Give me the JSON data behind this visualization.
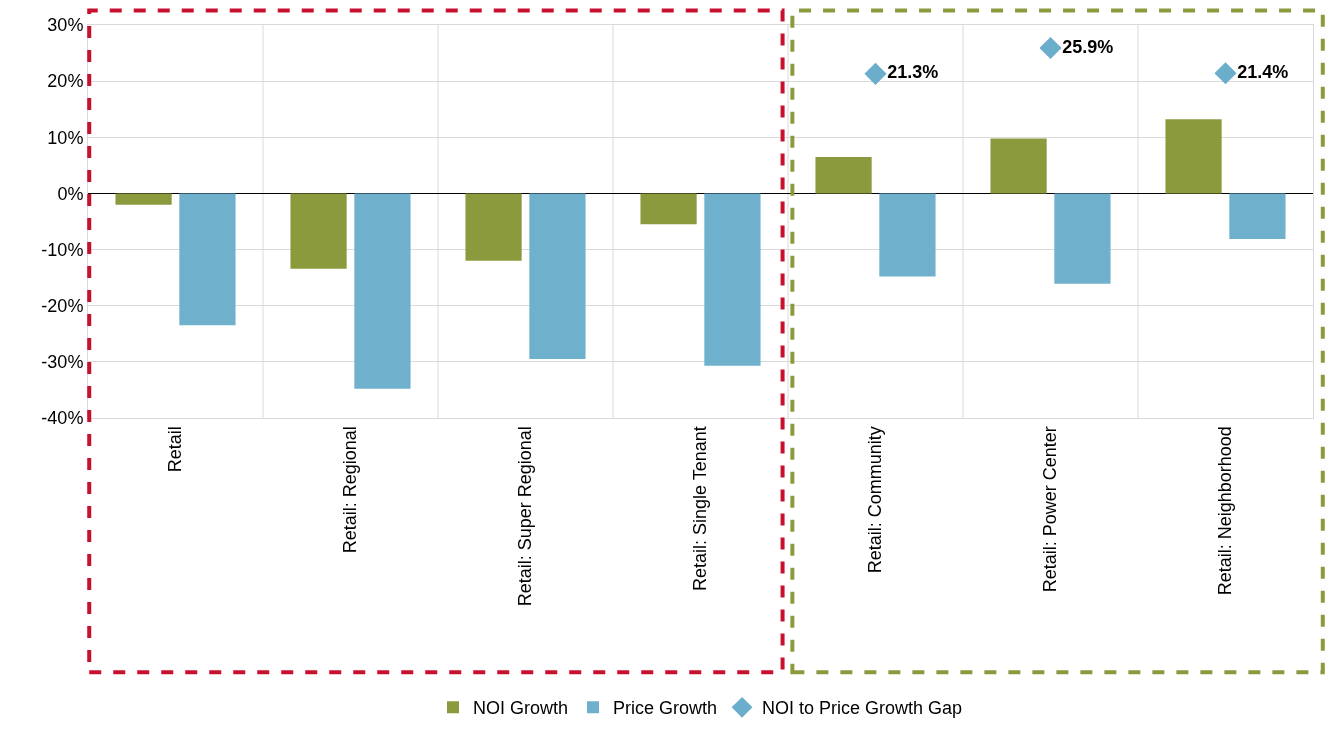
{
  "chart_data": {
    "type": "bar",
    "categories": [
      "Retail",
      "Retail: Regional",
      "Retail: Super Regional",
      "Retail: Single Tenant",
      "Retail: Community",
      "Retail: Power Center",
      "Retail: Neighborhood"
    ],
    "series": [
      {
        "name": "NOI Growth",
        "color": "#8c9a3e",
        "values": [
          -2,
          -13.4,
          -12,
          -5.5,
          6.5,
          9.8,
          13.2
        ]
      },
      {
        "name": "Price Growth",
        "color": "#6fb0cc",
        "values": [
          -23.5,
          -34.8,
          -29.5,
          -30.7,
          -14.8,
          -16.1,
          -8.1
        ]
      },
      {
        "name": "NOI to Price Growth Gap",
        "type": "scatter",
        "color": "#6aaecb",
        "values": [
          null,
          null,
          null,
          null,
          21.3,
          25.9,
          21.4
        ],
        "value_labels": [
          null,
          null,
          null,
          null,
          "21.3%",
          "25.9%",
          "21.4%"
        ]
      }
    ],
    "ylim": [
      -40,
      30
    ],
    "yticks": [
      {
        "value": -40,
        "label": "-40%"
      },
      {
        "value": -30,
        "label": "-30%"
      },
      {
        "value": -20,
        "label": "-20%"
      },
      {
        "value": -10,
        "label": "-10%"
      },
      {
        "value": 0,
        "label": "0%"
      },
      {
        "value": 10,
        "label": "10%"
      },
      {
        "value": 20,
        "label": "20%"
      },
      {
        "value": 30,
        "label": "30%"
      }
    ],
    "grid": true,
    "legend": "bottom",
    "marker": "diamond"
  }
}
